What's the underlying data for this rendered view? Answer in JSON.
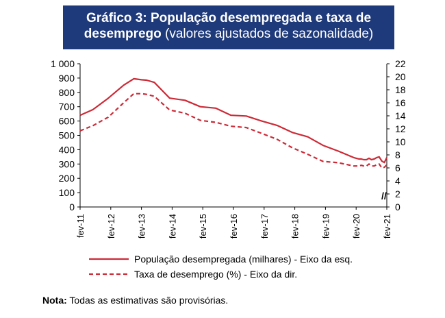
{
  "header": {
    "title_bold": "Gráfico 3: População desempregada e taxa de",
    "title_bold2": "desemprego",
    "title_sub": "(valores ajustados de sazonalidade)",
    "background_color": "#1f3a7a"
  },
  "note": {
    "label": "Nota:",
    "text": "Todas as estimativas são provisórias."
  },
  "chart_data": {
    "type": "line",
    "x_tick_labels": [
      "fev-11",
      "fev-12",
      "fev-13",
      "fev-14",
      "fev-15",
      "fev-16",
      "fev-17",
      "fev-18",
      "fev-19",
      "fev-20",
      "fev-21"
    ],
    "y_left": {
      "ticks": [
        "0",
        "100",
        "200",
        "300",
        "400",
        "500",
        "600",
        "700",
        "800",
        "900",
        "1 000"
      ],
      "range": [
        0,
        1000
      ]
    },
    "y_right": {
      "ticks": [
        "0",
        "2",
        "4",
        "6",
        "8",
        "10",
        "12",
        "14",
        "16",
        "18",
        "20",
        "22"
      ],
      "range": [
        0,
        22
      ]
    },
    "axis_break": "//",
    "color": "#cc2a36",
    "series": [
      {
        "name": "População desempregada (milhares) - Eixo da esq.",
        "axis": "left",
        "style": "solid",
        "x": [
          2011.08,
          2011.5,
          2012.0,
          2012.5,
          2012.83,
          2013.08,
          2013.25,
          2013.5,
          2014.0,
          2014.5,
          2015.0,
          2015.5,
          2016.0,
          2016.5,
          2017.0,
          2017.5,
          2018.0,
          2018.5,
          2019.0,
          2019.5,
          2020.0,
          2020.17,
          2020.25,
          2020.33,
          2020.42,
          2020.5,
          2020.58,
          2020.67,
          2020.75,
          2020.83,
          2020.92,
          2021.0,
          2021.08
        ],
        "values": [
          640,
          680,
          760,
          850,
          895,
          888,
          885,
          870,
          760,
          745,
          700,
          690,
          640,
          635,
          600,
          570,
          520,
          490,
          430,
          390,
          345,
          335,
          335,
          330,
          330,
          340,
          330,
          335,
          345,
          350,
          320,
          310,
          345
        ]
      },
      {
        "name": "Taxa de desemprego (%) - Eixo da dir.",
        "axis": "right",
        "style": "dashed",
        "x": [
          2011.08,
          2011.5,
          2012.0,
          2012.5,
          2012.83,
          2013.08,
          2013.25,
          2013.5,
          2014.0,
          2014.5,
          2015.0,
          2015.5,
          2016.0,
          2016.5,
          2017.0,
          2017.5,
          2018.0,
          2018.5,
          2019.0,
          2019.5,
          2020.0,
          2020.17,
          2020.25,
          2020.33,
          2020.42,
          2020.5,
          2020.58,
          2020.67,
          2020.75,
          2020.83,
          2020.92,
          2021.0,
          2021.08
        ],
        "values": [
          11.7,
          12.5,
          13.8,
          16.0,
          17.4,
          17.4,
          17.3,
          17.0,
          14.9,
          14.4,
          13.3,
          13.0,
          12.4,
          12.2,
          11.3,
          10.4,
          9.1,
          8.1,
          7.0,
          6.8,
          6.3,
          6.3,
          6.4,
          6.3,
          6.3,
          6.6,
          6.3,
          6.3,
          6.5,
          6.6,
          6.0,
          6.1,
          6.5
        ]
      }
    ]
  }
}
